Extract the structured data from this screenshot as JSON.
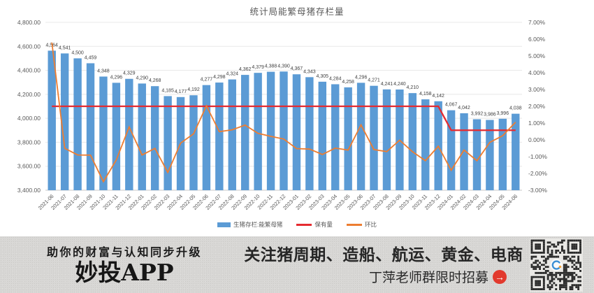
{
  "chart_data": {
    "type": "bar",
    "title": "统计局能繁母猪存栏量",
    "categories": [
      "2021-06",
      "2021-07",
      "2021-08",
      "2021-09",
      "2021-10",
      "2021-11",
      "2021-12",
      "2022-01",
      "2022-02",
      "2022-03",
      "2022-04",
      "2022-05",
      "2022-06",
      "2022-07",
      "2022-08",
      "2022-09",
      "2022-10",
      "2022-11",
      "2022-12",
      "2023-01",
      "2023-02",
      "2023-03",
      "2023-04",
      "2023-05",
      "2023-06",
      "2023-07",
      "2023-08",
      "2023-09",
      "2023-10",
      "2023-11",
      "2023-12",
      "2024-01",
      "2024-02",
      "2024-03",
      "2024-04",
      "2024-05",
      "2024-06"
    ],
    "series": [
      {
        "name": "生猪存栏:能繁母猪",
        "type": "bar",
        "axis": "left",
        "color": "#5b9bd5",
        "values": [
          4564,
          4541,
          4500,
          4459,
          4348,
          4296,
          4329,
          4290,
          4268,
          4185,
          4177,
          4192,
          4277,
          4298,
          4324,
          4362,
          4379,
          4388,
          4390,
          4367,
          4343,
          4305,
          4284,
          4258,
          4296,
          4271,
          4241,
          4240,
          4210,
          4158,
          4142,
          4067,
          4042,
          3992,
          3986,
          3996,
          4038
        ]
      },
      {
        "name": "保有量",
        "type": "line",
        "axis": "left",
        "color": "#e52b30",
        "values": [
          4100,
          4100,
          4100,
          4100,
          4100,
          4100,
          4100,
          4100,
          4100,
          4100,
          4100,
          4100,
          4100,
          4100,
          4100,
          4100,
          4100,
          4100,
          4100,
          4100,
          4100,
          4100,
          4100,
          4100,
          4100,
          4100,
          4100,
          4100,
          4100,
          4100,
          4100,
          3900,
          3900,
          3900,
          3900,
          3900,
          3900
        ]
      },
      {
        "name": "环比",
        "type": "line",
        "axis": "right",
        "color": "#ed7d31",
        "values": [
          5.8,
          -0.5,
          -0.9,
          -0.91,
          -2.49,
          -1.2,
          0.77,
          -0.9,
          -0.51,
          -1.94,
          -0.19,
          0.36,
          2.03,
          0.49,
          0.6,
          0.88,
          0.39,
          0.21,
          0.05,
          -0.52,
          -0.55,
          -0.87,
          -0.49,
          -0.61,
          0.89,
          -0.58,
          -0.7,
          -0.02,
          -0.71,
          -1.24,
          -0.38,
          -1.81,
          -0.61,
          -1.24,
          -0.15,
          0.25,
          1.05
        ]
      }
    ],
    "left_axis": {
      "min": 3400,
      "max": 4800,
      "step": 200,
      "ticks": [
        "4,800.00",
        "4,600.00",
        "4,400.00",
        "4,200.00",
        "4,000.00",
        "3,800.00",
        "3,600.00",
        "3,400.00"
      ]
    },
    "right_axis": {
      "min": -3,
      "max": 7,
      "step": 1,
      "ticks": [
        "7.00%",
        "6.00%",
        "5.00%",
        "4.00%",
        "3.00%",
        "2.00%",
        "1.00%",
        "0.00%",
        "-1.00%",
        "-2.00%",
        "-3.00%"
      ]
    },
    "grid": true,
    "legend_position": "bottom",
    "bar_label_color": "#404040",
    "axis_text_color": "#595959"
  },
  "banner": {
    "tagline": "助你的财富与认知同步升级",
    "app_name": "妙投APP",
    "headline": "关注猪周期、造船、航运、黄金、电商",
    "recruit": "丁萍老师群限时招募",
    "arrow_glyph": "→",
    "arrow_color": "#e23a2e",
    "background_color": "#d8d7d5",
    "qr_icon": "qr-code"
  }
}
